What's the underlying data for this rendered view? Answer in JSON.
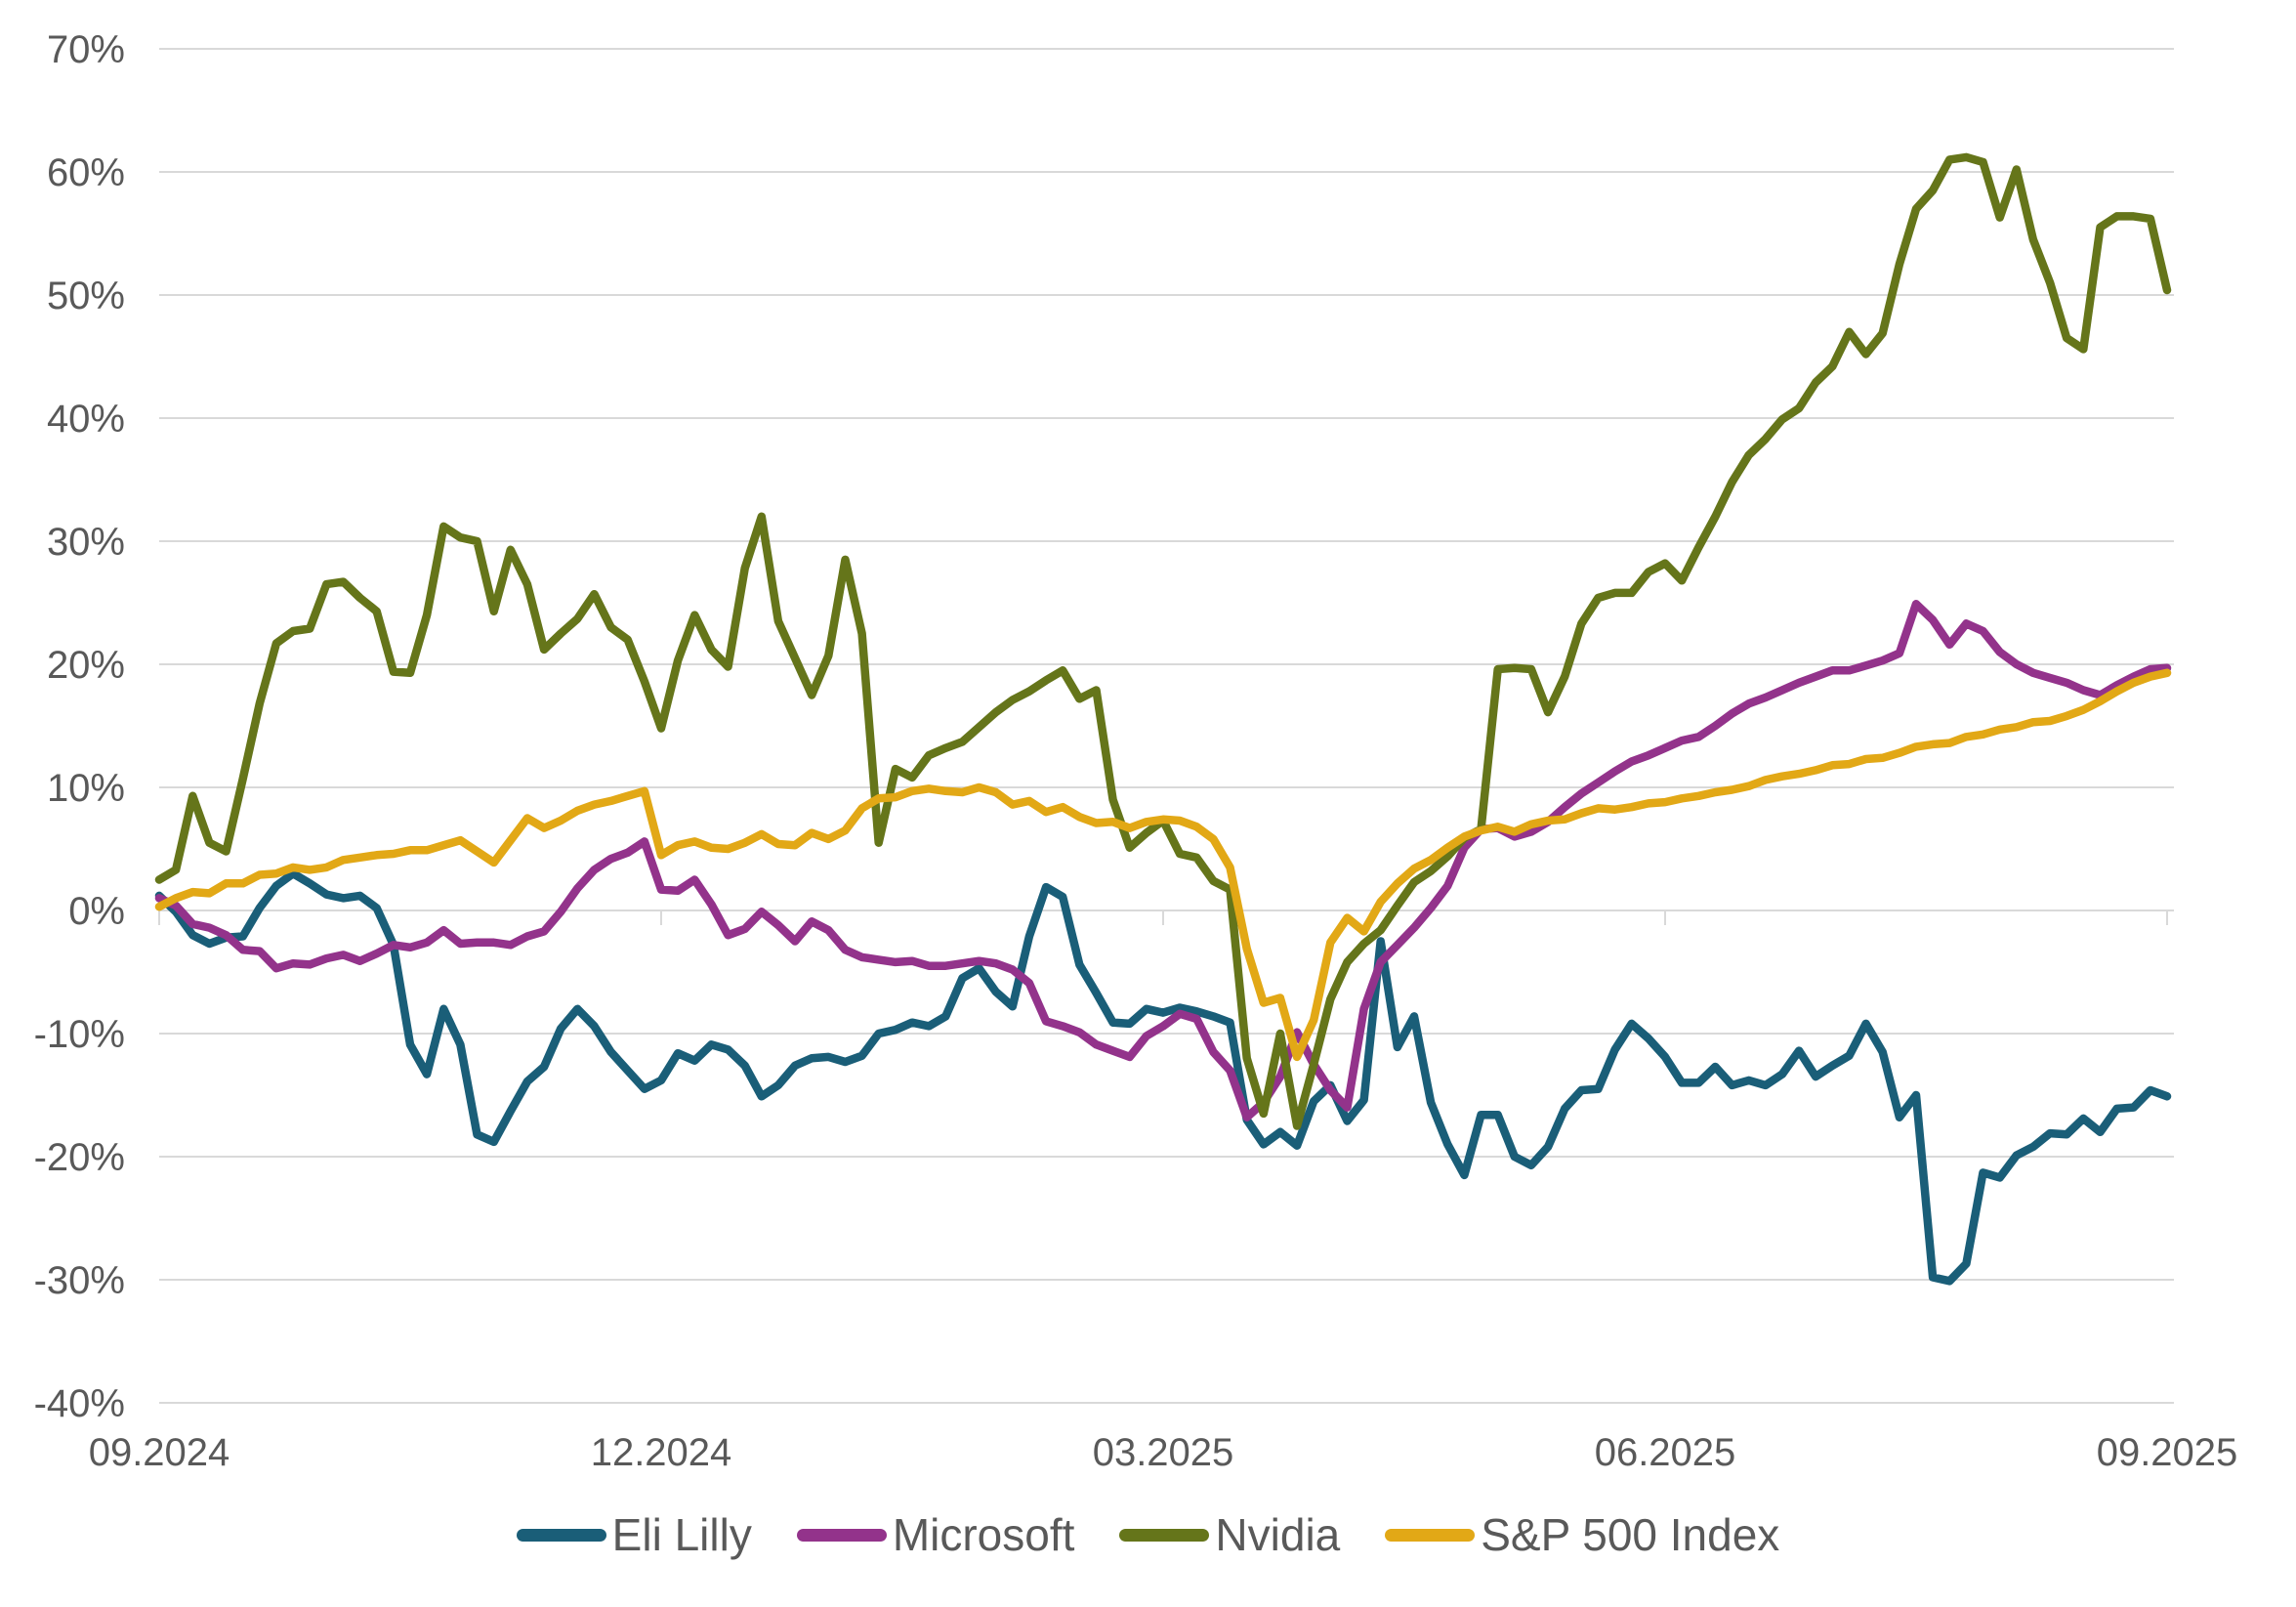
{
  "chart_data": {
    "type": "line",
    "title": "",
    "grid": "horizontal",
    "legend_position": "bottom",
    "background_color": "#ffffff",
    "grid_color": "#D9D9D9",
    "text_color": "#595959",
    "x_axis": {
      "unit": "months since 09.2024",
      "tick_months": [
        0,
        3,
        6,
        9,
        12
      ],
      "tick_labels": [
        "09.2024",
        "12.2024",
        "03.2025",
        "06.2025",
        "09.2025"
      ]
    },
    "y_axis": {
      "unit": "percent return",
      "ylim": [
        -40,
        70
      ],
      "tick_values": [
        70,
        60,
        50,
        40,
        30,
        20,
        10,
        0,
        -10,
        -20,
        -30,
        -40
      ],
      "tick_labels": [
        "70%",
        "60%",
        "50%",
        "40%",
        "30%",
        "20%",
        "10%",
        "0%",
        "-10%",
        "-20%",
        "-30%",
        "-40%"
      ]
    },
    "sample_interval_months": 0.1,
    "series": [
      {
        "name": "Eli Lilly",
        "color": "#1A5E78",
        "values": [
          1.2,
          -0.1,
          -2.0,
          -2.7,
          -2.2,
          -2.1,
          0.2,
          2.0,
          3.0,
          2.2,
          1.3,
          1.0,
          1.2,
          0.2,
          -2.8,
          -10.9,
          -13.3,
          -8.0,
          -10.9,
          -18.2,
          -18.8,
          -16.3,
          -13.9,
          -12.7,
          -9.6,
          -8.0,
          -9.4,
          -11.5,
          -13.0,
          -14.5,
          -13.8,
          -11.6,
          -12.2,
          -10.9,
          -11.3,
          -12.6,
          -15.1,
          -14.2,
          -12.6,
          -12.0,
          -11.9,
          -12.3,
          -11.8,
          -10.0,
          -9.7,
          -9.1,
          -9.4,
          -8.6,
          -5.5,
          -4.7,
          -6.6,
          -7.8,
          -2.1,
          1.9,
          1.1,
          -4.4,
          -6.7,
          -9.1,
          -9.2,
          -8.0,
          -8.3,
          -7.9,
          -8.2,
          -8.6,
          -9.1,
          -17.0,
          -19.0,
          -18.0,
          -19.1,
          -15.5,
          -14.2,
          -17.1,
          -15.4,
          -2.5,
          -11.1,
          -8.6,
          -15.6,
          -19.0,
          -21.5,
          -16.6,
          -16.6,
          -20.0,
          -20.7,
          -19.2,
          -16.1,
          -14.6,
          -14.5,
          -11.3,
          -9.2,
          -10.4,
          -11.9,
          -14.0,
          -14.0,
          -12.7,
          -14.2,
          -13.8,
          -14.2,
          -13.3,
          -11.4,
          -13.5,
          -12.6,
          -11.8,
          -9.2,
          -11.5,
          -16.8,
          -15.0,
          -29.8,
          -30.1,
          -28.7,
          -21.3,
          -21.7,
          -19.9,
          -19.2,
          -18.1,
          -18.2,
          -16.9,
          -18.0,
          -16.1,
          -16.0,
          -14.6,
          -15.1
        ]
      },
      {
        "name": "Microsoft",
        "color": "#93338B",
        "values": [
          1.0,
          0.4,
          -1.1,
          -1.4,
          -2.0,
          -3.2,
          -3.3,
          -4.7,
          -4.3,
          -4.4,
          -3.9,
          -3.6,
          -4.1,
          -3.5,
          -2.8,
          -3.0,
          -2.6,
          -1.6,
          -2.7,
          -2.6,
          -2.6,
          -2.8,
          -2.1,
          -1.7,
          -0.1,
          1.8,
          3.3,
          4.2,
          4.7,
          5.6,
          1.7,
          1.6,
          2.5,
          0.5,
          -2.0,
          -1.5,
          -0.1,
          -1.2,
          -2.5,
          -0.9,
          -1.6,
          -3.2,
          -3.8,
          -4.0,
          -4.2,
          -4.1,
          -4.5,
          -4.5,
          -4.3,
          -4.1,
          -4.3,
          -4.8,
          -5.9,
          -9.0,
          -9.4,
          -9.9,
          -10.9,
          -11.4,
          -11.9,
          -10.2,
          -9.4,
          -8.4,
          -8.8,
          -11.5,
          -13.0,
          -16.8,
          -15.6,
          -13.5,
          -9.9,
          -12.5,
          -14.6,
          -16.0,
          -8.0,
          -4.2,
          -2.8,
          -1.4,
          0.2,
          2.0,
          5.1,
          6.6,
          6.7,
          6.0,
          6.4,
          7.2,
          8.4,
          9.5,
          10.4,
          11.3,
          12.1,
          12.6,
          13.2,
          13.8,
          14.1,
          15.0,
          16.0,
          16.8,
          17.3,
          17.9,
          18.5,
          19.0,
          19.5,
          19.5,
          19.9,
          20.3,
          20.9,
          24.9,
          23.6,
          21.6,
          23.3,
          22.7,
          21.0,
          20.0,
          19.3,
          18.9,
          18.5,
          17.9,
          17.5,
          18.3,
          19.0,
          19.6,
          19.7
        ]
      },
      {
        "name": "Nvidia",
        "color": "#65751A",
        "values": [
          2.5,
          3.3,
          9.3,
          5.5,
          4.8,
          10.7,
          16.8,
          21.7,
          22.7,
          22.9,
          26.5,
          26.7,
          25.4,
          24.3,
          19.4,
          19.3,
          24.0,
          31.2,
          30.3,
          30.0,
          24.3,
          29.3,
          26.5,
          21.2,
          22.5,
          23.7,
          25.7,
          23.0,
          22.0,
          18.6,
          14.8,
          20.3,
          24.0,
          21.2,
          19.8,
          27.8,
          32.0,
          23.5,
          20.5,
          17.5,
          20.7,
          28.5,
          22.5,
          5.5,
          11.5,
          10.8,
          12.6,
          13.2,
          13.7,
          14.9,
          16.1,
          17.1,
          17.8,
          18.7,
          19.5,
          17.2,
          17.9,
          9.0,
          5.1,
          6.3,
          7.3,
          4.6,
          4.3,
          2.4,
          1.7,
          -12.0,
          -16.5,
          -10.0,
          -17.5,
          -12.5,
          -7.2,
          -4.2,
          -2.7,
          -1.6,
          0.4,
          2.3,
          3.2,
          4.4,
          5.9,
          6.6,
          19.6,
          19.7,
          19.6,
          16.1,
          19.0,
          23.3,
          25.4,
          25.8,
          25.8,
          27.5,
          28.2,
          26.8,
          29.5,
          32.0,
          34.8,
          37.0,
          38.3,
          39.9,
          40.8,
          42.9,
          44.2,
          47.0,
          45.2,
          46.9,
          52.5,
          57.0,
          58.5,
          61.0,
          61.2,
          60.8,
          56.3,
          60.2,
          54.5,
          51.0,
          46.5,
          45.6,
          55.5,
          56.4,
          56.4,
          56.2,
          50.4
        ]
      },
      {
        "name": "S&P 500 Index",
        "color": "#E2A816",
        "values": [
          0.3,
          1.0,
          1.5,
          1.4,
          2.2,
          2.2,
          2.9,
          3.0,
          3.5,
          3.3,
          3.5,
          4.1,
          4.3,
          4.5,
          4.6,
          4.9,
          4.9,
          5.3,
          5.7,
          4.8,
          3.9,
          5.7,
          7.5,
          6.7,
          7.3,
          8.1,
          8.6,
          8.9,
          9.3,
          9.7,
          4.5,
          5.3,
          5.6,
          5.1,
          5.0,
          5.5,
          6.2,
          5.4,
          5.3,
          6.3,
          5.8,
          6.5,
          8.3,
          9.1,
          9.2,
          9.7,
          9.9,
          9.7,
          9.6,
          10.0,
          9.6,
          8.6,
          8.9,
          8.0,
          8.4,
          7.6,
          7.1,
          7.2,
          6.7,
          7.2,
          7.4,
          7.3,
          6.8,
          5.8,
          3.5,
          -3.1,
          -7.5,
          -7.1,
          -11.9,
          -8.9,
          -2.6,
          -0.6,
          -1.7,
          0.7,
          2.2,
          3.4,
          4.1,
          5.1,
          6.0,
          6.5,
          6.8,
          6.4,
          7.0,
          7.3,
          7.4,
          7.9,
          8.3,
          8.2,
          8.4,
          8.7,
          8.8,
          9.1,
          9.3,
          9.6,
          9.8,
          10.1,
          10.6,
          10.9,
          11.1,
          11.4,
          11.8,
          11.9,
          12.3,
          12.4,
          12.8,
          13.3,
          13.5,
          13.6,
          14.1,
          14.3,
          14.7,
          14.9,
          15.3,
          15.4,
          15.8,
          16.3,
          17.0,
          17.8,
          18.5,
          19.0,
          19.3
        ]
      }
    ]
  }
}
